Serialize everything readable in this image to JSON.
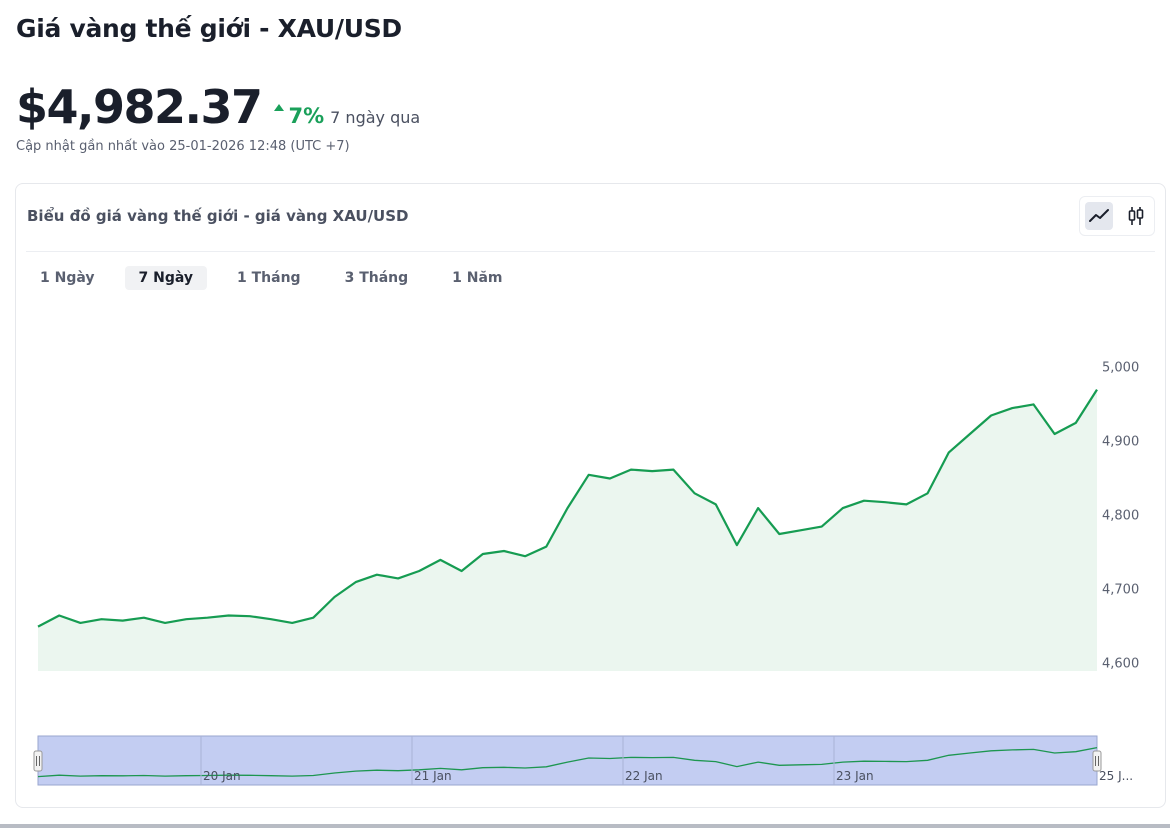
{
  "header": {
    "title": "Giá vàng thế giới - XAU/USD",
    "price": "$4,982.37",
    "change_pct": "7%",
    "change_period": "7 ngày qua",
    "updated": "Cập nhật gần nhất vào 25-01-2026 12:48 (UTC +7)"
  },
  "card": {
    "title": "Biểu đồ giá vàng thế giới - giá vàng XAU/USD",
    "chart_types": [
      "line-chart-icon",
      "candlestick-icon"
    ],
    "active_chart_type": "line-chart-icon"
  },
  "ranges": [
    {
      "label": "1 Ngày",
      "active": false
    },
    {
      "label": "7 Ngày",
      "active": true
    },
    {
      "label": "1 Tháng",
      "active": false
    },
    {
      "label": "3 Tháng",
      "active": false
    },
    {
      "label": "1 Năm",
      "active": false
    }
  ],
  "colors": {
    "line": "#169c52",
    "area": "#ebf6ef",
    "up": "#1aa05a",
    "navigator_fill": "#c3cdf2",
    "navigator_line": "#1d9650"
  },
  "chart_data": {
    "type": "area",
    "x": [
      0,
      2,
      4,
      6,
      8,
      10,
      12,
      14,
      16,
      18,
      20,
      22,
      24,
      26,
      28,
      30,
      32,
      34,
      36,
      38,
      40,
      42,
      44,
      46,
      48,
      50,
      52,
      54,
      56,
      58,
      60,
      62,
      64,
      66,
      68,
      70,
      72,
      74,
      76,
      78,
      80,
      82,
      84,
      86,
      88,
      90,
      92,
      94,
      96,
      98,
      100
    ],
    "values": [
      4650,
      4665,
      4655,
      4660,
      4658,
      4662,
      4655,
      4660,
      4662,
      4665,
      4664,
      4660,
      4655,
      4662,
      4690,
      4710,
      4720,
      4715,
      4725,
      4740,
      4725,
      4748,
      4752,
      4745,
      4758,
      4810,
      4855,
      4850,
      4862,
      4860,
      4862,
      4830,
      4815,
      4760,
      4810,
      4775,
      4780,
      4785,
      4810,
      4820,
      4818,
      4815,
      4830,
      4885,
      4910,
      4935,
      4945,
      4950,
      4910,
      4925,
      4970
    ],
    "ylim": [
      4590,
      5010
    ],
    "yticks": [
      4600,
      4700,
      4800,
      4900,
      5000
    ],
    "ytick_labels": [
      "4,600",
      "4,700",
      "4,800",
      "4,900",
      "5,000"
    ],
    "navigator_labels": [
      "20 Jan",
      "21 Jan",
      "22 Jan",
      "23 Jan",
      "25 J..."
    ],
    "grid": false
  }
}
